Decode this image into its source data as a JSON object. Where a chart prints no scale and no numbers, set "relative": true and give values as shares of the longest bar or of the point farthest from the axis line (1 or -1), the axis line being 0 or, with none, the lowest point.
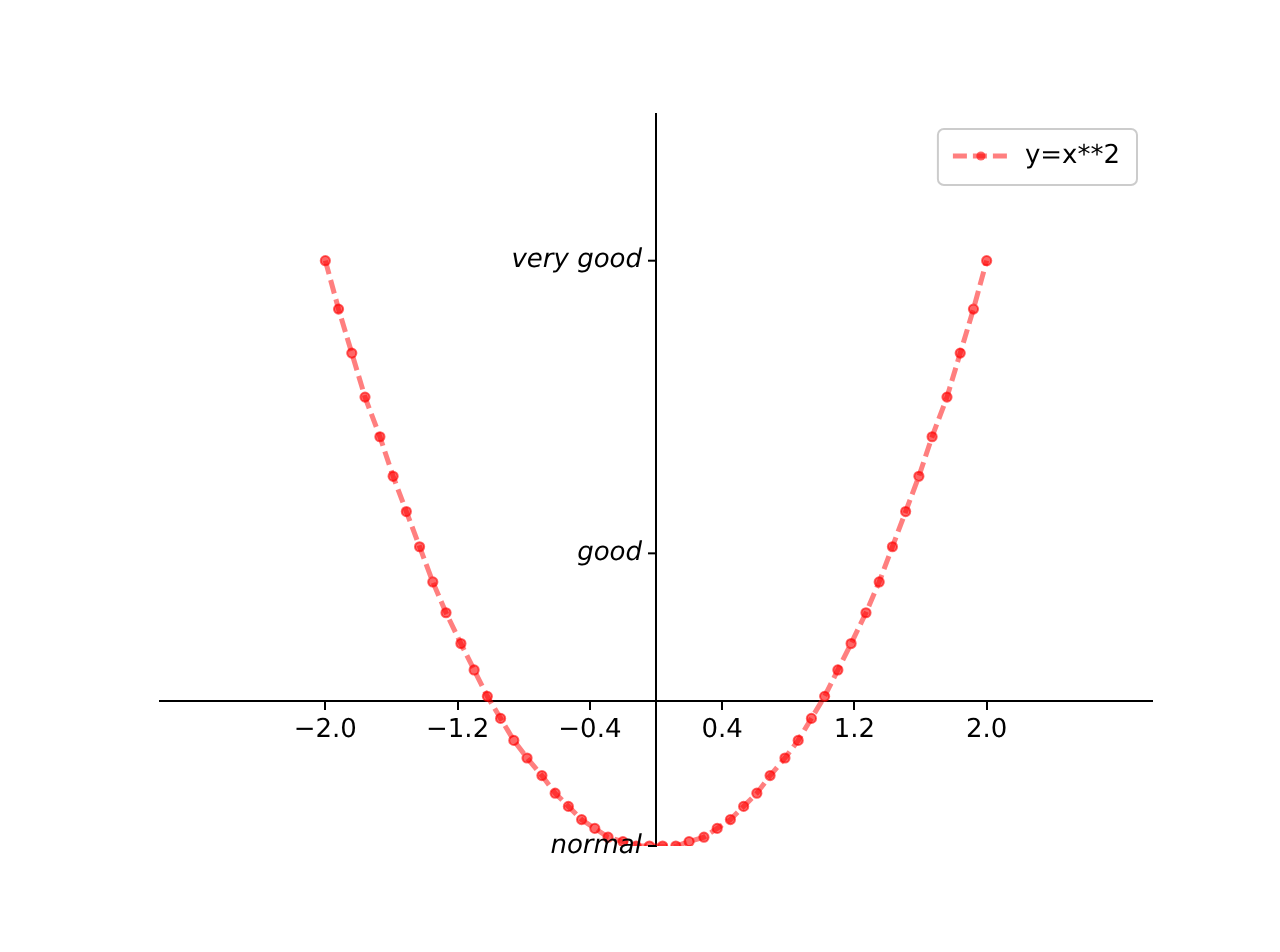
{
  "chart_data": {
    "type": "line",
    "relative": true,
    "x": [
      -2,
      -1.92,
      -1.84,
      -1.76,
      -1.67,
      -1.59,
      -1.51,
      -1.43,
      -1.35,
      -1.27,
      -1.18,
      -1.1,
      -1.02,
      -0.94,
      -0.86,
      -0.78,
      -0.69,
      -0.61,
      -0.53,
      -0.45,
      -0.37,
      -0.29,
      -0.2,
      -0.12,
      -0.04,
      0.04,
      0.12,
      0.2,
      0.29,
      0.37,
      0.45,
      0.53,
      0.61,
      0.69,
      0.78,
      0.86,
      0.94,
      1.02,
      1.1,
      1.18,
      1.27,
      1.35,
      1.43,
      1.51,
      1.59,
      1.67,
      1.76,
      1.84,
      1.92,
      2
    ],
    "series": [
      {
        "name": "y=x**2",
        "color": "#ff0000",
        "values": [
          1,
          0.89,
          0.79,
          0.69,
          0.6,
          0.51,
          0.43,
          0.35,
          0.27,
          0.2,
          0.13,
          0.07,
          0.01,
          -0.04,
          -0.09,
          -0.13,
          -0.17,
          -0.21,
          -0.24,
          -0.27,
          -0.29,
          -0.31,
          -0.32,
          -0.33,
          -0.33,
          -0.33,
          -0.33,
          -0.32,
          -0.31,
          -0.29,
          -0.27,
          -0.24,
          -0.21,
          -0.17,
          -0.13,
          -0.09,
          -0.04,
          0.01,
          0.07,
          0.13,
          0.2,
          0.27,
          0.35,
          0.43,
          0.51,
          0.6,
          0.69,
          0.79,
          0.89,
          1
        ]
      }
    ],
    "xlim": [
      -3,
      3
    ],
    "xticks": [
      {
        "value": -2,
        "label": "−2.0"
      },
      {
        "value": -1.2,
        "label": "−1.2"
      },
      {
        "value": -0.4,
        "label": "−0.4"
      },
      {
        "value": 0.4,
        "label": "0.4"
      },
      {
        "value": 1.2,
        "label": "1.2"
      },
      {
        "value": 2,
        "label": "2.0"
      }
    ],
    "annotations": [
      "normal",
      "good",
      "very good"
    ],
    "legend": "top right",
    "marker": "circle",
    "line_style": "dashed"
  }
}
